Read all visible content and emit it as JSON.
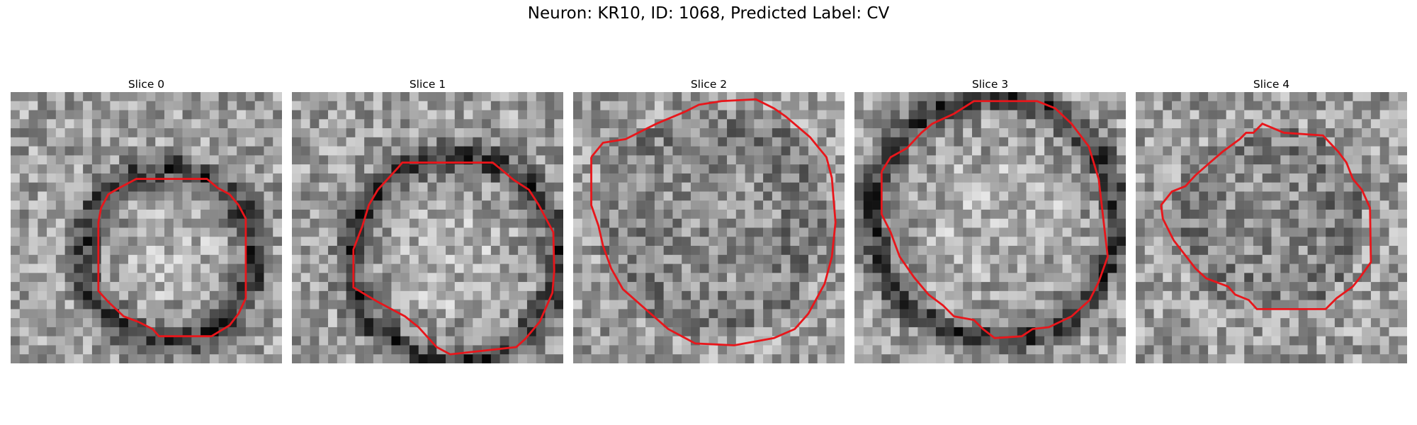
{
  "figure": {
    "suptitle": "Neuron: KR10, ID: 1068, Predicted Label: CV",
    "contour_color": "#e8161b",
    "panels": [
      {
        "title": "Slice 0",
        "seed": 11,
        "ring_dark": true
      },
      {
        "title": "Slice 1",
        "seed": 23,
        "ring_dark": true
      },
      {
        "title": "Slice 2",
        "seed": 37,
        "ring_dark": false
      },
      {
        "title": "Slice 3",
        "seed": 51,
        "ring_dark": true
      },
      {
        "title": "Slice 4",
        "seed": 67,
        "ring_dark": false
      }
    ]
  }
}
